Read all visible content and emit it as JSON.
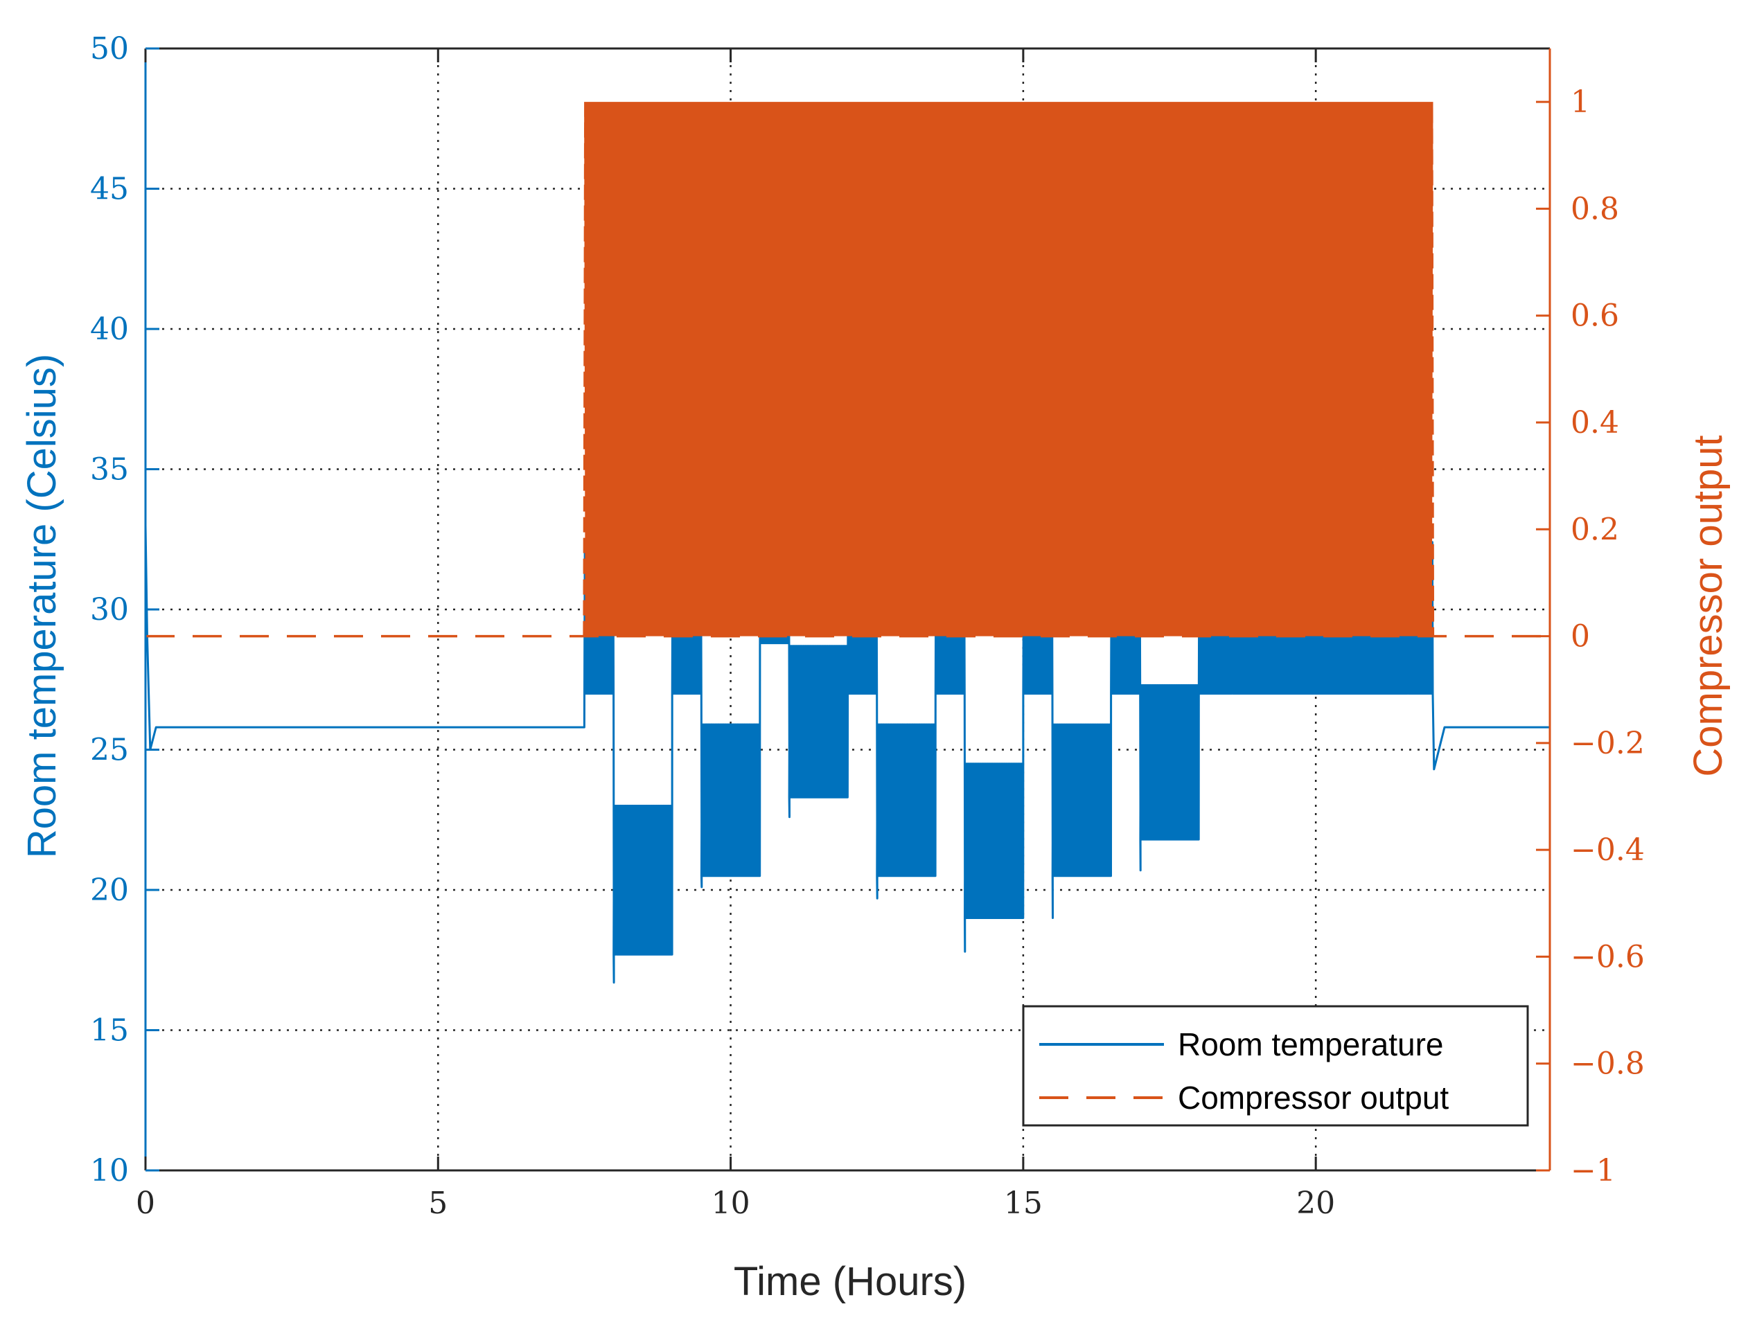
{
  "chart_data": {
    "type": "line",
    "title": "",
    "xlabel": "Time (Hours)",
    "ylabel_left": "Room temperature (Celsius)",
    "ylabel_right": "Compressor output",
    "xlim": [
      0,
      24
    ],
    "ylim_left": [
      10,
      50
    ],
    "ylim_right": [
      -1,
      1.1
    ],
    "x_ticks": [
      "0",
      "5",
      "10",
      "15",
      "20"
    ],
    "x_tick_values": [
      0,
      5,
      10,
      15,
      20
    ],
    "y_ticks_left": [
      "10",
      "15",
      "20",
      "25",
      "30",
      "35",
      "40",
      "45",
      "50"
    ],
    "y_tick_values_left": [
      10,
      15,
      20,
      25,
      30,
      35,
      40,
      45,
      50
    ],
    "y_ticks_right": [
      "−1",
      "−0.8",
      "−0.6",
      "−0.4",
      "−0.2",
      "0",
      "0.2",
      "0.4",
      "0.6",
      "0.8",
      "1"
    ],
    "y_tick_values_right": [
      -1,
      -0.8,
      -0.6,
      -0.4,
      -0.2,
      0,
      0.2,
      0.4,
      0.6,
      0.8,
      1
    ],
    "grid": true,
    "legend_position": "bottom-right",
    "colors": {
      "temperature": "#0072BD",
      "compressor": "#D95319",
      "axis": "#262626"
    },
    "series": [
      {
        "name": "Room temperature",
        "axis": "left",
        "style": "solid",
        "baseline": 25.8,
        "initial_value": 33,
        "initial_dip": 25.0,
        "end_dip": 24.3,
        "oscillating_segments": [
          {
            "x_start": 7.5,
            "x_end": 8.0,
            "high": 32.0,
            "low": 27.0
          },
          {
            "x_start": 8.0,
            "x_end": 9.0,
            "high": 23.0,
            "low": 17.7,
            "min": 16.7
          },
          {
            "x_start": 9.0,
            "x_end": 9.5,
            "high": 32.0,
            "low": 27.0
          },
          {
            "x_start": 9.5,
            "x_end": 10.5,
            "high": 25.9,
            "low": 20.5,
            "min": 20.1
          },
          {
            "x_start": 10.5,
            "x_end": 11.0,
            "high": 32.0,
            "low": 28.8
          },
          {
            "x_start": 11.0,
            "x_end": 12.0,
            "high": 28.7,
            "low": 23.3,
            "min": 22.6
          },
          {
            "x_start": 12.0,
            "x_end": 12.5,
            "high": 32.0,
            "low": 27.0
          },
          {
            "x_start": 12.5,
            "x_end": 13.5,
            "high": 25.9,
            "low": 20.5,
            "min": 19.7
          },
          {
            "x_start": 13.5,
            "x_end": 14.0,
            "high": 32.0,
            "low": 27.0
          },
          {
            "x_start": 14.0,
            "x_end": 15.0,
            "high": 24.5,
            "low": 19.0,
            "min": 17.8
          },
          {
            "x_start": 15.0,
            "x_end": 15.5,
            "high": 32.0,
            "low": 27.0
          },
          {
            "x_start": 15.5,
            "x_end": 16.5,
            "high": 25.9,
            "low": 20.5,
            "min": 19.0
          },
          {
            "x_start": 16.5,
            "x_end": 17.0,
            "high": 32.0,
            "low": 27.0
          },
          {
            "x_start": 17.0,
            "x_end": 18.0,
            "high": 27.3,
            "low": 21.8,
            "min": 20.7
          },
          {
            "x_start": 18.0,
            "x_end": 22.0,
            "high": 32.4,
            "low": 27.0
          }
        ]
      },
      {
        "name": "Compressor output",
        "axis": "right",
        "style": "dashed",
        "baseline": 0,
        "switching_start": 7.5,
        "switching_end": 22.0,
        "on_value": 1,
        "off_value": 0
      }
    ],
    "legend": [
      "Room temperature",
      "Compressor output"
    ]
  }
}
